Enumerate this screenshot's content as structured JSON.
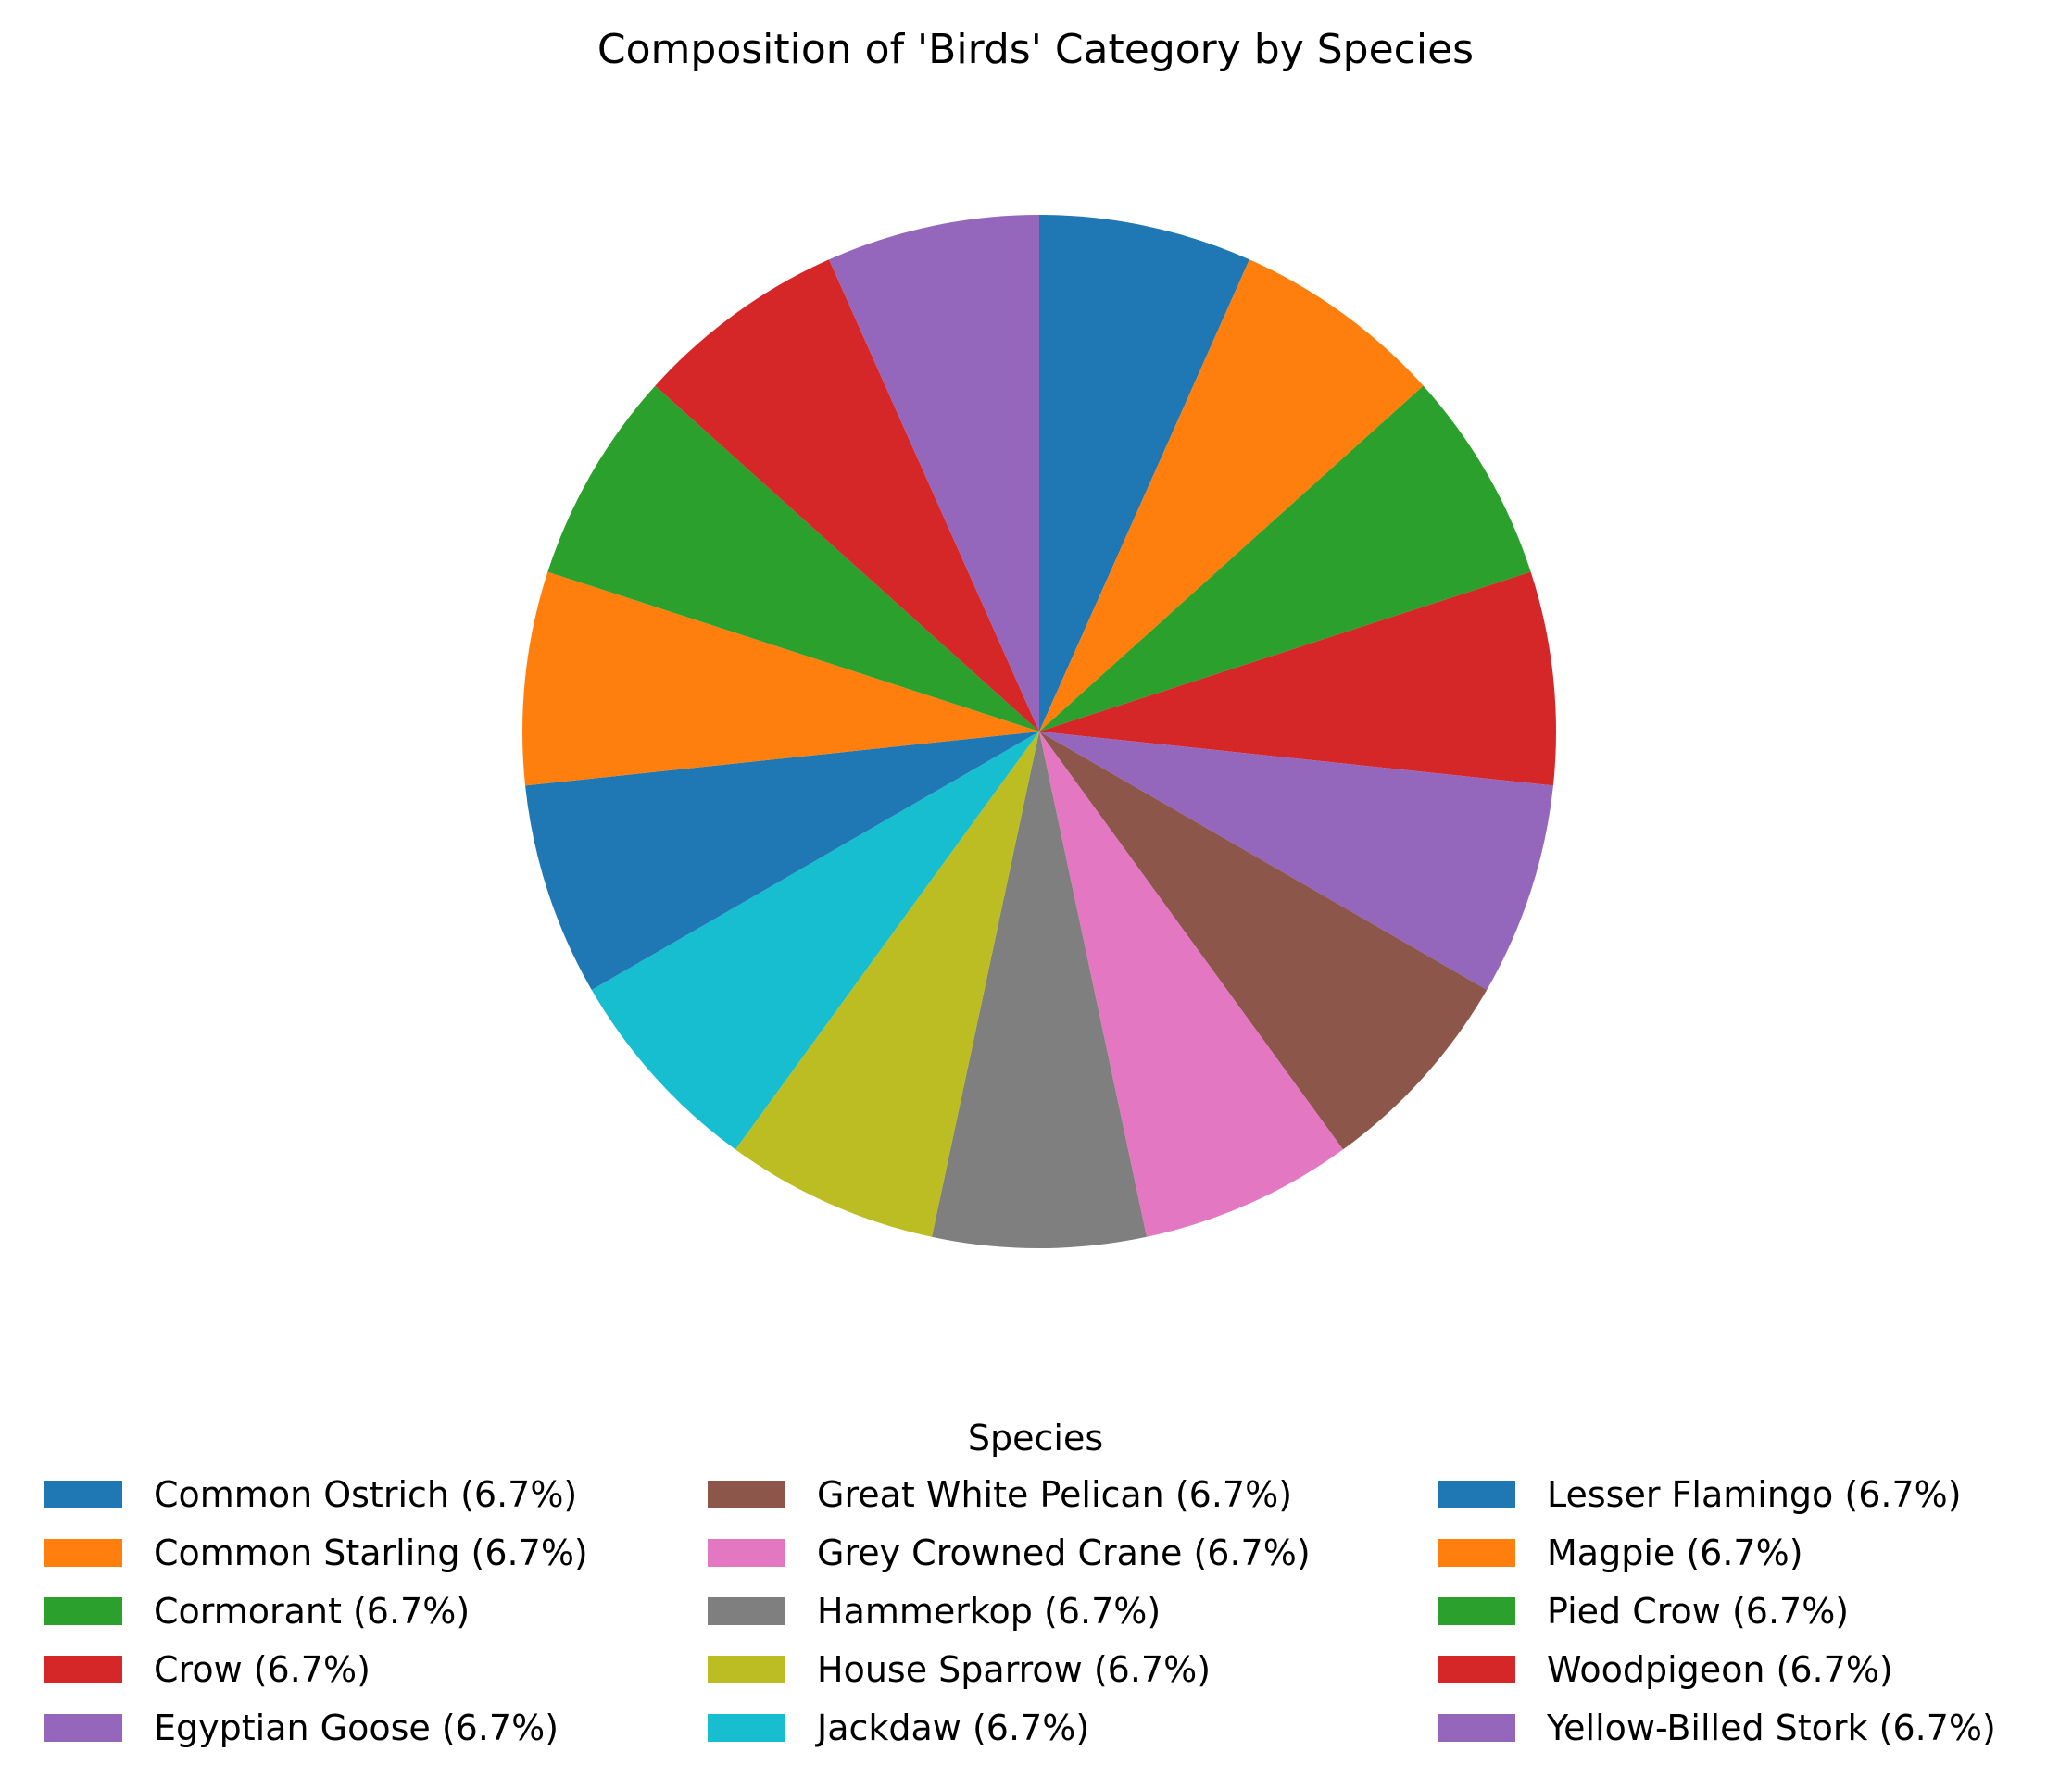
{
  "chart_data": {
    "type": "pie",
    "title": "Composition of 'Birds' Category by Species",
    "legend_title": "Species",
    "legend_placement": "bottom",
    "start_angle_deg": 90,
    "direction": "clockwise",
    "slices": [
      {
        "label": "Common Ostrich",
        "value": 6.7,
        "legend": "Common Ostrich (6.7%)",
        "color": "#1f77b4"
      },
      {
        "label": "Common Starling",
        "value": 6.7,
        "legend": "Common Starling (6.7%)",
        "color": "#ff7f0e"
      },
      {
        "label": "Cormorant",
        "value": 6.7,
        "legend": "Cormorant (6.7%)",
        "color": "#2ca02c"
      },
      {
        "label": "Crow",
        "value": 6.7,
        "legend": "Crow (6.7%)",
        "color": "#d62728"
      },
      {
        "label": "Egyptian Goose",
        "value": 6.7,
        "legend": "Egyptian Goose (6.7%)",
        "color": "#9467bd"
      },
      {
        "label": "Great White Pelican",
        "value": 6.7,
        "legend": "Great White Pelican (6.7%)",
        "color": "#8c564b"
      },
      {
        "label": "Grey Crowned Crane",
        "value": 6.7,
        "legend": "Grey Crowned Crane (6.7%)",
        "color": "#e377c2"
      },
      {
        "label": "Hammerkop",
        "value": 6.7,
        "legend": "Hammerkop (6.7%)",
        "color": "#7f7f7f"
      },
      {
        "label": "House Sparrow",
        "value": 6.7,
        "legend": "House Sparrow (6.7%)",
        "color": "#bcbd22"
      },
      {
        "label": "Jackdaw",
        "value": 6.7,
        "legend": "Jackdaw (6.7%)",
        "color": "#17becf"
      },
      {
        "label": "Lesser Flamingo",
        "value": 6.7,
        "legend": "Lesser Flamingo (6.7%)",
        "color": "#1f77b4"
      },
      {
        "label": "Magpie",
        "value": 6.7,
        "legend": "Magpie (6.7%)",
        "color": "#ff7f0e"
      },
      {
        "label": "Pied Crow",
        "value": 6.7,
        "legend": "Pied Crow (6.7%)",
        "color": "#2ca02c"
      },
      {
        "label": "Woodpigeon",
        "value": 6.7,
        "legend": "Woodpigeon (6.7%)",
        "color": "#d62728"
      },
      {
        "label": "Yellow-Billed Stork",
        "value": 6.7,
        "legend": "Yellow-Billed Stork (6.7%)",
        "color": "#9467bd"
      }
    ]
  }
}
